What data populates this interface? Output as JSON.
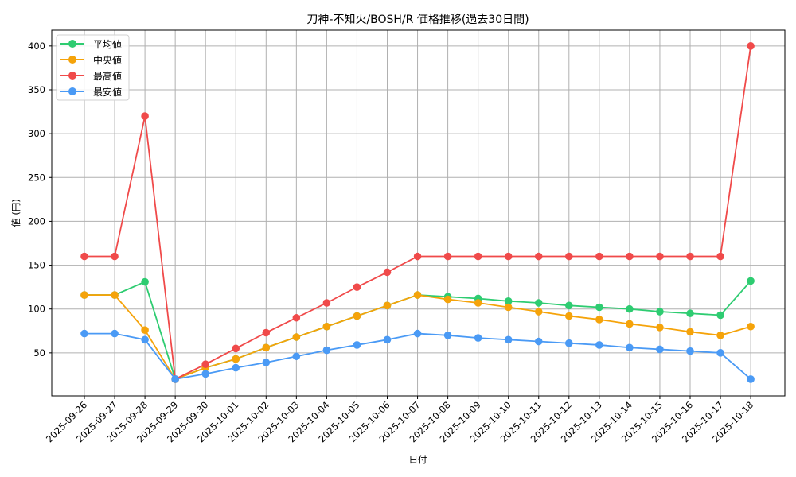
{
  "chart_data": {
    "type": "line",
    "title": "刀神-不知火/BOSH/R 価格推移(過去30日間)",
    "xlabel": "日付",
    "ylabel": "値 (円)",
    "ylim": [
      0,
      420
    ],
    "yticks": [
      50,
      100,
      150,
      200,
      250,
      300,
      350,
      400
    ],
    "grid": true,
    "legend_position": "upper left",
    "categories": [
      "2025-09-26",
      "2025-09-27",
      "2025-09-28",
      "2025-09-29",
      "2025-09-30",
      "2025-10-01",
      "2025-10-02",
      "2025-10-03",
      "2025-10-04",
      "2025-10-05",
      "2025-10-06",
      "2025-10-07",
      "2025-10-08",
      "2025-10-09",
      "2025-10-10",
      "2025-10-11",
      "2025-10-12",
      "2025-10-13",
      "2025-10-14",
      "2025-10-15",
      "2025-10-16",
      "2025-10-17",
      "2025-10-18"
    ],
    "series": [
      {
        "name": "平均値",
        "color": "#2ecc71",
        "values": [
          116,
          116,
          131,
          20,
          33,
          43,
          56,
          68,
          80,
          92,
          104,
          116,
          114,
          112,
          109,
          107,
          104,
          102,
          100,
          97,
          95,
          93,
          132
        ]
      },
      {
        "name": "中央値",
        "color": "#f5a30a",
        "values": [
          116,
          116,
          76,
          20,
          33,
          43,
          56,
          68,
          80,
          92,
          104,
          116,
          111,
          107,
          102,
          97,
          92,
          88,
          83,
          79,
          74,
          70,
          80
        ]
      },
      {
        "name": "最高値",
        "color": "#f04a4a",
        "values": [
          160,
          160,
          320,
          20,
          37,
          55,
          73,
          90,
          107,
          125,
          142,
          160,
          160,
          160,
          160,
          160,
          160,
          160,
          160,
          160,
          160,
          160,
          400
        ]
      },
      {
        "name": "最安値",
        "color": "#4a9af5",
        "values": [
          72,
          72,
          65,
          20,
          26,
          33,
          39,
          46,
          53,
          59,
          65,
          72,
          70,
          67,
          65,
          63,
          61,
          59,
          56,
          54,
          52,
          50,
          20
        ]
      }
    ]
  }
}
